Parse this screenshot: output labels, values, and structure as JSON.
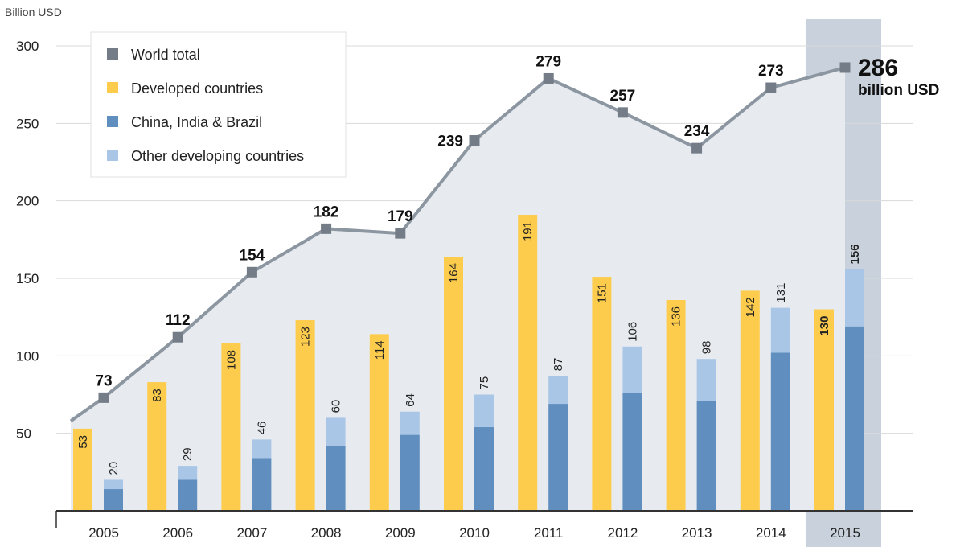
{
  "chart_data": {
    "type": "bar",
    "unit_label": "Billion USD",
    "categories": [
      "2005",
      "2006",
      "2007",
      "2008",
      "2009",
      "2010",
      "2011",
      "2012",
      "2013",
      "2014",
      "2015"
    ],
    "highlighted_category": "2015",
    "ylim": [
      0,
      300
    ],
    "yticks": [
      50,
      100,
      150,
      200,
      250,
      300
    ],
    "series": [
      {
        "name": "World total",
        "kind": "line",
        "color": "#8c96a1",
        "marker_color": "#737c87",
        "values": [
          73,
          112,
          154,
          182,
          179,
          239,
          279,
          257,
          234,
          273,
          286
        ]
      },
      {
        "name": "Developed countries",
        "kind": "bar",
        "color": "#fdcc4d",
        "values": [
          53,
          83,
          108,
          123,
          114,
          164,
          191,
          151,
          136,
          142,
          130
        ]
      },
      {
        "name": "China, India & Brazil",
        "kind": "stacked-bar",
        "color": "#5f8ebf",
        "values": [
          14,
          20,
          34,
          42,
          49,
          54,
          69,
          76,
          71,
          102,
          119
        ]
      },
      {
        "name": "Other developing countries",
        "kind": "stacked-bar",
        "color": "#a9c6e6",
        "values": [
          6,
          9,
          12,
          18,
          15,
          21,
          18,
          30,
          27,
          29,
          37
        ]
      }
    ],
    "developing_totals": [
      20,
      29,
      46,
      60,
      64,
      75,
      87,
      106,
      98,
      131,
      156
    ],
    "callout": {
      "value": "286",
      "unit": "billion USD"
    },
    "legend_position": "top-left",
    "grid": true
  }
}
